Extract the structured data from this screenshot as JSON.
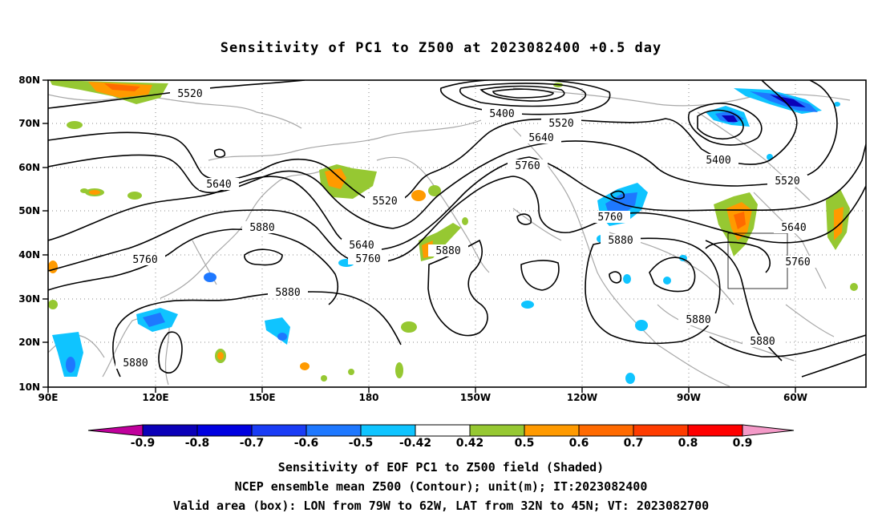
{
  "title": "Sensitivity of PC1 to Z500 at 2023082400 +0.5 day",
  "lon_ticks": [
    "90E",
    "120E",
    "150E",
    "180",
    "150W",
    "120W",
    "90W",
    "60W"
  ],
  "lat_ticks": [
    "80N",
    "70N",
    "60N",
    "50N",
    "40N",
    "30N",
    "20N",
    "10N"
  ],
  "contour_labels": [
    "5520",
    "5400",
    "5520",
    "5640",
    "5760",
    "5640",
    "5520",
    "5400",
    "5520",
    "5880",
    "5640",
    "5760",
    "5760",
    "5640",
    "5880",
    "5880",
    "5760",
    "5880",
    "5880",
    "5880",
    "5880"
  ],
  "colorbar": {
    "ticks": [
      "-0.9",
      "-0.8",
      "-0.7",
      "-0.6",
      "-0.5",
      "-0.42",
      "0.42",
      "0.5",
      "0.6",
      "0.7",
      "0.8",
      "0.9"
    ],
    "colors": [
      "#c0009c",
      "#0b00b8",
      "#0000e0",
      "#1a3cf5",
      "#1e78ff",
      "#0fc4ff",
      "#ffffff",
      "#96c832",
      "#ff9a00",
      "#ff6a00",
      "#ff3c00",
      "#ff0000",
      "#f49ac8"
    ]
  },
  "valid_box": {
    "lon_min": -79,
    "lon_max": -62,
    "lat_min": 32,
    "lat_max": 45
  },
  "captions": {
    "line1": "Sensitivity of EOF PC1 to Z500 field (Shaded)",
    "line2": "NCEP ensemble mean Z500 (Contour); unit(m); IT:2023082400",
    "line3": "Valid area (box): LON from 79W to 62W, LAT from 32N to 45N; VT: 2023082700"
  }
}
